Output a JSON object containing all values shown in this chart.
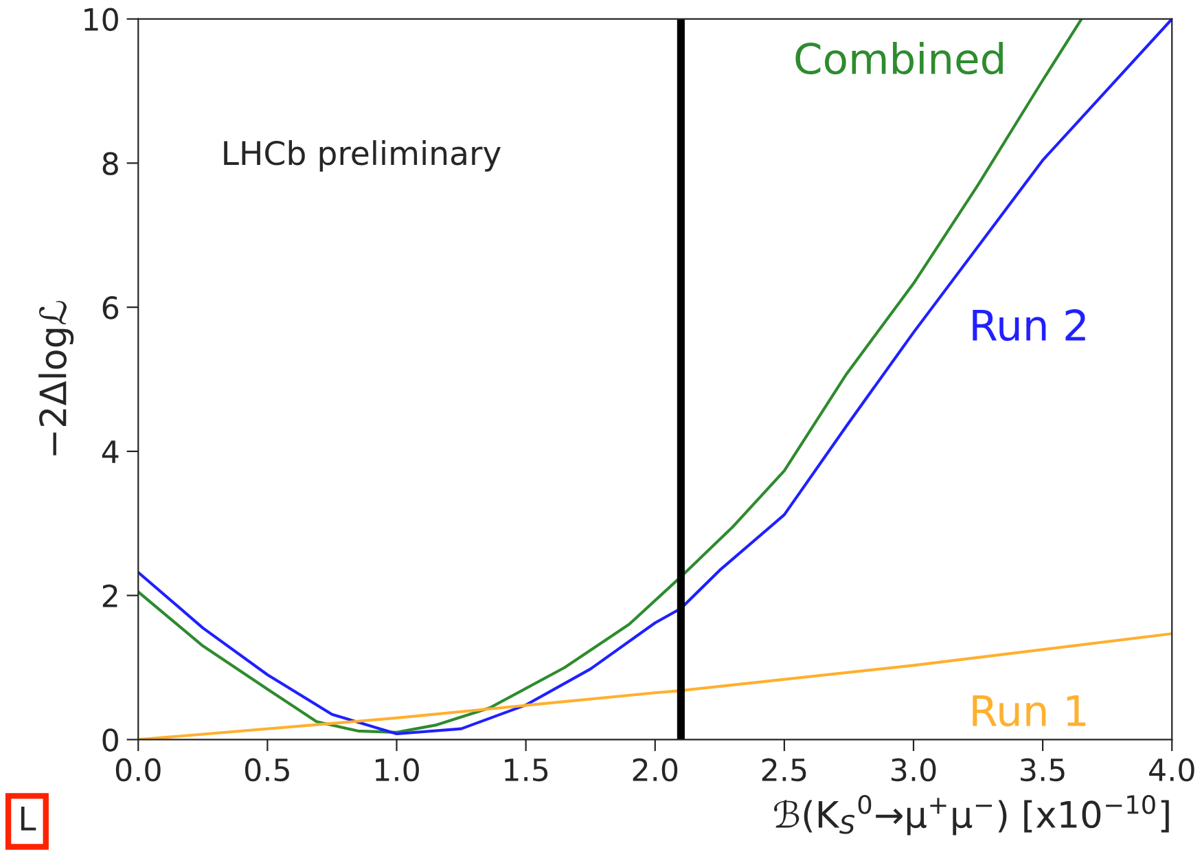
{
  "chart_data": {
    "type": "line",
    "xlabel": "ℬ(K$_{S}$$^{0}$→μ$^{+}$μ$^{−}$) [x10$^{−10}$]",
    "ylabel": "−2Δlogℒ",
    "xlim": [
      0,
      4
    ],
    "ylim": [
      0,
      10
    ],
    "xticks": [
      {
        "value": 0,
        "label": "0.0"
      },
      {
        "value": 0.5,
        "label": "0.5"
      },
      {
        "value": 1,
        "label": "1.0"
      },
      {
        "value": 1.5,
        "label": "1.5"
      },
      {
        "value": 2,
        "label": "2.0"
      },
      {
        "value": 2.5,
        "label": "2.5"
      },
      {
        "value": 3,
        "label": "3.0"
      },
      {
        "value": 3.5,
        "label": "3.5"
      },
      {
        "value": 4,
        "label": "4.0"
      }
    ],
    "yticks": [
      0,
      2,
      4,
      6,
      8,
      10
    ],
    "grid": false,
    "legend": false,
    "marker": "none",
    "line_style": "solid",
    "series": [
      {
        "name": "Combined",
        "color": "#2e8b2e",
        "x": [
          0,
          0.25,
          0.5,
          0.69,
          0.85,
          1.0,
          1.15,
          1.36,
          1.65,
          1.9,
          2.1,
          2.3,
          2.5,
          2.74,
          3.0,
          3.25,
          3.5,
          3.65
        ],
        "values": [
          2.05,
          1.3,
          0.7,
          0.25,
          0.12,
          0.1,
          0.2,
          0.44,
          1.0,
          1.6,
          2.26,
          2.95,
          3.73,
          5.07,
          6.33,
          7.7,
          9.15,
          10
        ]
      },
      {
        "name": "Run 2",
        "color": "#2020ff",
        "x": [
          0,
          0.25,
          0.5,
          0.75,
          1.0,
          1.25,
          1.5,
          1.75,
          2.0,
          2.1,
          2.25,
          2.5,
          2.74,
          3.0,
          3.5,
          4.0
        ],
        "values": [
          2.32,
          1.55,
          0.9,
          0.35,
          0.08,
          0.15,
          0.48,
          0.98,
          1.62,
          1.82,
          2.35,
          3.12,
          4.35,
          5.65,
          8.04,
          10
        ]
      },
      {
        "name": "Run 1",
        "color": "#ffb030",
        "x": [
          0,
          1,
          2,
          2.1,
          3,
          4
        ],
        "values": [
          0,
          0.3,
          0.65,
          0.68,
          1.03,
          1.47
        ]
      }
    ],
    "ref_lines": [
      {
        "axis": "x",
        "value": 2.1,
        "label": null,
        "color": "#000000"
      }
    ],
    "annotations": [
      {
        "text": "LHCb preliminary"
      },
      {
        "text": "L"
      }
    ]
  }
}
